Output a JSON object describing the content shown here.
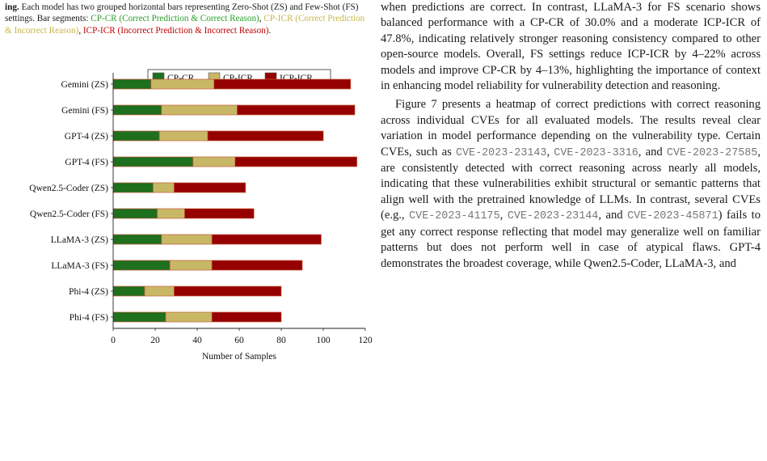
{
  "caption": {
    "lead": "ing.",
    "text": " Each model has two grouped horizontal bars representing Zero-Shot (ZS) and Few-Shot (FS) settings. Bar segments: ",
    "cpcr": "CP-CR (Correct Prediction & Correct Reason)",
    "sep1": ", ",
    "cpicr": "CP-ICR (Correct Prediction & Incorrect Reason)",
    "sep2": ", ",
    "icpicr": "ICP-ICR (Incorrect Prediction & Incorrect Reason)",
    "end": "."
  },
  "colors": {
    "cpcr": "#1e6f1e",
    "cpicr": "#c8b866",
    "icpicr": "#950000"
  },
  "chart_data": {
    "type": "bar",
    "orientation": "horizontal",
    "stacked": true,
    "categories": [
      "Gemini (ZS)",
      "Gemini (FS)",
      "GPT-4 (ZS)",
      "GPT-4 (FS)",
      "Qwen2.5-Coder (ZS)",
      "Qwen2.5-Coder (FS)",
      "LLaMA-3 (ZS)",
      "LLaMA-3 (FS)",
      "Phi-4 (ZS)",
      "Phi-4 (FS)"
    ],
    "series": [
      {
        "name": "CP-CR",
        "values": [
          18,
          23,
          22,
          38,
          19,
          21,
          23,
          27,
          15,
          25
        ]
      },
      {
        "name": "CP-ICR",
        "values": [
          30,
          36,
          23,
          20,
          10,
          13,
          24,
          20,
          14,
          22
        ]
      },
      {
        "name": "ICP-ICR",
        "values": [
          65,
          56,
          55,
          58,
          34,
          33,
          52,
          43,
          51,
          33
        ]
      }
    ],
    "xlabel": "Number of Samples",
    "ylabel": "",
    "xlim": [
      0,
      120
    ],
    "xticks": [
      "0",
      "20",
      "40",
      "60",
      "80",
      "100",
      "120"
    ],
    "legend_position": "top",
    "grid": false
  },
  "right_column": {
    "p1": "when predictions are correct. In contrast, LLaMA-3 for FS scenario shows balanced performance with a CP-CR of 30.0% and a moderate ICP-ICR of 47.8%, indicating relatively stronger reasoning consistency compared to other open-source models. Overall, FS settings reduce ICP-ICR by 4–22% across models and improve CP-CR by 4–13%, highlighting the importance of context in enhancing model reliability for vulnerability detection and reasoning.",
    "p2_a": "Figure 7 presents a heatmap of correct predictions with correct reasoning across individual CVEs for all evaluated models. The results reveal clear variation in model performance depending on the vulnerability type. Certain CVEs, such as ",
    "cve1": "CVE-2023-23143",
    "p2_b": ", ",
    "cve2": "CVE-2023-3316",
    "p2_c": ", and ",
    "cve3": "CVE-2023-27585",
    "p2_d": ", are consistently detected with correct reasoning across nearly all models, indicating that these vulnerabilities exhibit structural or semantic patterns that align well with the pretrained knowledge of LLMs. In contrast, several CVEs (e.g., ",
    "cve4": "CVE-2023-41175",
    "p2_e": ", ",
    "cve5": "CVE-2023-23144",
    "p2_f": ", and ",
    "cve6": "CVE-2023-45871",
    "p2_g": ") fails to get any correct response reflecting that model may generalize well on familiar patterns but does not perform well in case of atypical flaws. GPT-4 demonstrates the broadest coverage, while Qwen2.5-Coder, LLaMA-3, and"
  }
}
